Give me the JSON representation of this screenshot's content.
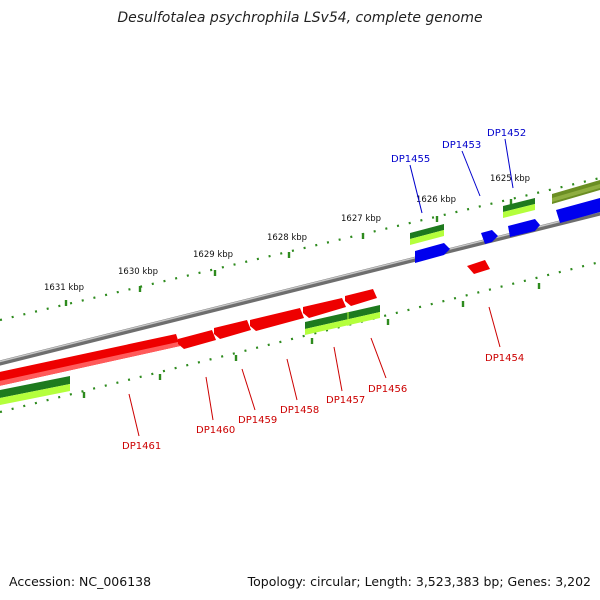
{
  "title": "Desulfotalea psychrophila LSv54, complete genome",
  "footer": {
    "accession": "Accession: NC_006138",
    "summary": "Topology: circular; Length: 3,523,383 bp; Genes: 3,202"
  },
  "colors": {
    "backbone": "#8a8a8a",
    "ruler": "#2e8b1e",
    "forward_gene": "#0000ee",
    "reverse_gene": "#ee0000",
    "rna_dark": "#1e7a1e",
    "rna_light": "#b4ff3c",
    "olive_feature": "#6b8e23"
  },
  "ruler_labels": [
    "1631 kbp",
    "1630 kbp",
    "1629 kbp",
    "1628 kbp",
    "1627 kbp",
    "1626 kbp",
    "1625 kbp"
  ],
  "gene_labels": {
    "forward": [
      "DP1455",
      "DP1453",
      "DP1452"
    ],
    "reverse": [
      "DP1454",
      "DP1456",
      "DP1457",
      "DP1458",
      "DP1459",
      "DP1460",
      "DP1461"
    ]
  }
}
